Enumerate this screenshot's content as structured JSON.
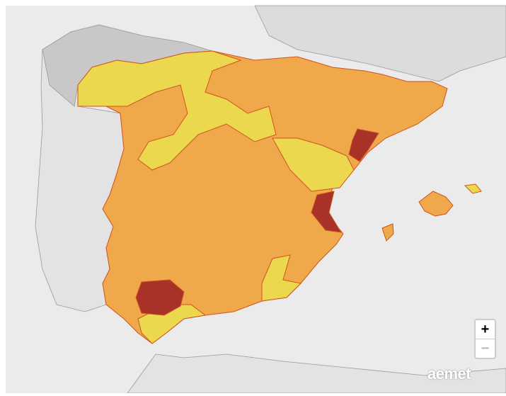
{
  "controls": {
    "zoom_in": "+",
    "zoom_out": "−"
  },
  "logo": "aemet"
}
